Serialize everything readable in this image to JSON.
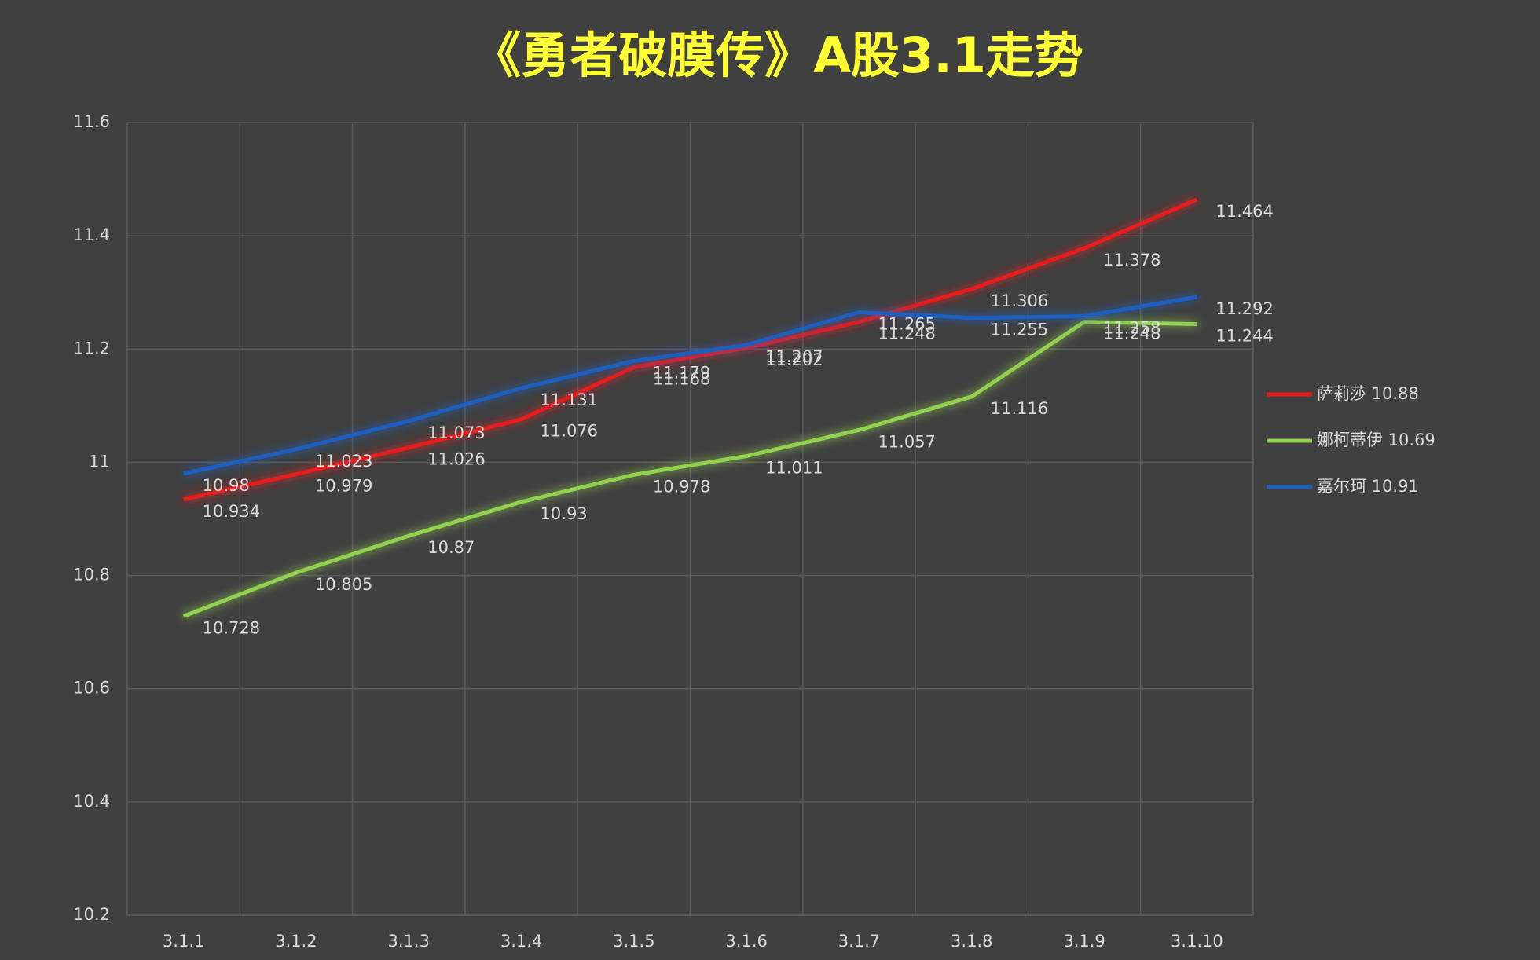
{
  "chart_data": {
    "type": "line",
    "title": "《勇者破膜传》A股3.1走势",
    "categories": [
      "3.1.1",
      "3.1.2",
      "3.1.3",
      "3.1.4",
      "3.1.5",
      "3.1.6",
      "3.1.7",
      "3.1.8",
      "3.1.9",
      "3.1.10"
    ],
    "series": [
      {
        "name": "萨莉莎 10.88",
        "color": "#e81c1c",
        "values": [
          10.934,
          10.979,
          11.026,
          11.076,
          11.168,
          11.202,
          11.248,
          11.306,
          11.378,
          11.464
        ]
      },
      {
        "name": "娜柯蒂伊 10.69",
        "color": "#92d050",
        "values": [
          10.728,
          10.805,
          10.87,
          10.93,
          10.978,
          11.011,
          11.057,
          11.116,
          11.248,
          11.244
        ]
      },
      {
        "name": "嘉尔珂 10.91",
        "color": "#1f5fbf",
        "values": [
          10.98,
          11.023,
          11.073,
          11.131,
          11.179,
          11.207,
          11.265,
          11.255,
          11.258,
          11.292
        ]
      }
    ],
    "ylim": [
      10.2,
      11.6
    ],
    "yticks": [
      10.2,
      10.4,
      10.6,
      10.8,
      11,
      11.2,
      11.4,
      11.6
    ],
    "grid": true,
    "legend": "right"
  }
}
